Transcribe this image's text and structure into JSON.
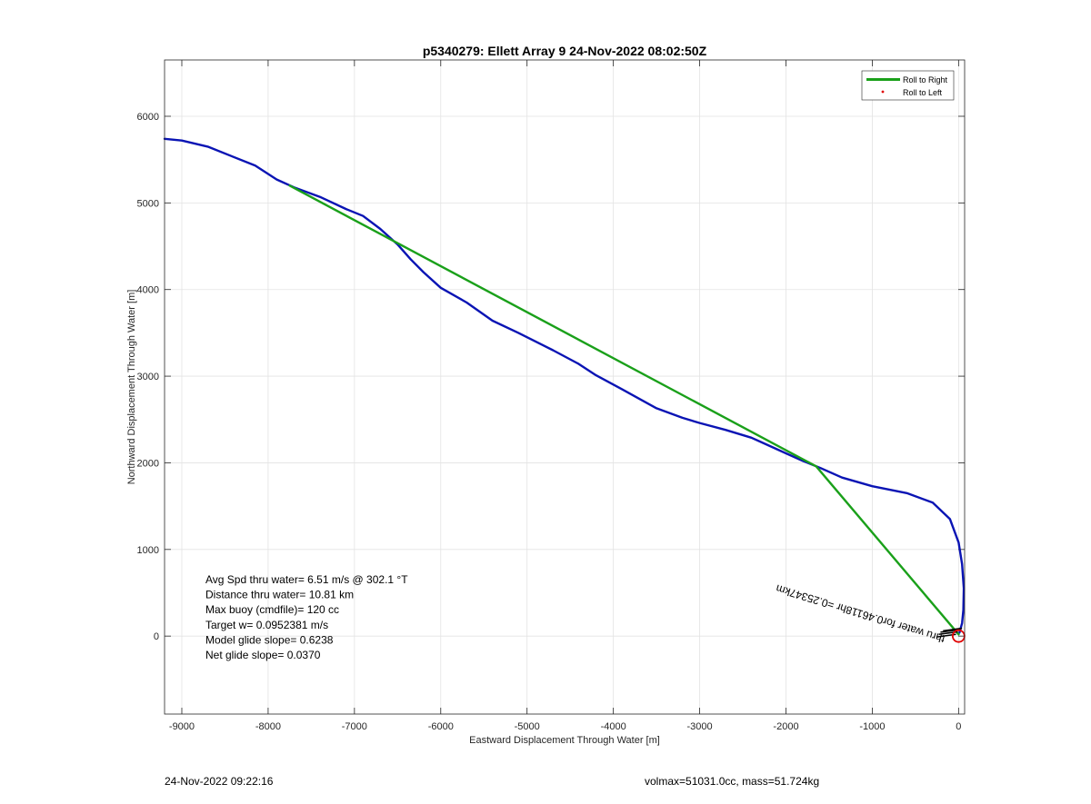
{
  "chart_data": {
    "type": "line",
    "title": "p5340279: Ellett Array 9 24-Nov-2022 08:02:50Z",
    "xlabel": "Eastward Displacement Through Water [m]",
    "ylabel": "Northward Displacement Through Water [m]",
    "xlim": [
      -9200,
      70
    ],
    "ylim": [
      -900,
      6650
    ],
    "xticks": [
      -9000,
      -8000,
      -7000,
      -6000,
      -5000,
      -4000,
      -3000,
      -2000,
      -1000,
      0
    ],
    "xtick_labels": [
      "-9000",
      "-8000",
      "-7000",
      "-6000",
      "-5000",
      "-4000",
      "-3000",
      "-2000",
      "-1000",
      "0"
    ],
    "yticks": [
      0,
      1000,
      2000,
      3000,
      4000,
      5000,
      6000
    ],
    "ytick_labels": [
      "0",
      "1000",
      "2000",
      "3000",
      "4000",
      "5000",
      "6000"
    ],
    "grid": true,
    "legend_position": "top-right",
    "legend": [
      {
        "label": "Roll to Right",
        "color": "#1aa01a",
        "marker": "line"
      },
      {
        "label": "Roll to Left",
        "color": "#e00000",
        "marker": "dot"
      }
    ],
    "series": [
      {
        "kind": "track",
        "color": "#0a14b4",
        "x": [
          -9200,
          -9000,
          -8700,
          -8150,
          -7900,
          -7700,
          -7400,
          -7100,
          -6900,
          -6700,
          -6500,
          -6350,
          -6200,
          -6000,
          -5700,
          -5400,
          -5100,
          -4700,
          -4400,
          -4200,
          -3900,
          -3700,
          -3500,
          -3200,
          -3000,
          -2700,
          -2400,
          -2200,
          -2000,
          -1800,
          -1600,
          -1350,
          -1000,
          -600,
          -300,
          -100,
          0,
          40,
          60,
          55,
          40,
          10
        ],
        "y": [
          5740,
          5720,
          5650,
          5430,
          5270,
          5180,
          5070,
          4930,
          4850,
          4700,
          4520,
          4350,
          4200,
          4020,
          3850,
          3640,
          3500,
          3300,
          3140,
          3010,
          2850,
          2740,
          2630,
          2520,
          2460,
          2380,
          2290,
          2200,
          2110,
          2020,
          1940,
          1830,
          1730,
          1650,
          1540,
          1350,
          1080,
          830,
          550,
          300,
          150,
          40
        ]
      },
      {
        "kind": "straight-track",
        "color": "#1aa01a",
        "x": [
          -7750,
          -1650,
          0
        ],
        "y": [
          5200,
          1960,
          20
        ]
      }
    ],
    "start_marker": {
      "x": 0,
      "y": 0,
      "color": "#e00000",
      "shape": "circle"
    },
    "annotation_rotated": "thru water for0.46118hr =0.25347km",
    "stats_text": [
      "Avg Spd thru water=  6.51 m/s @ 302.1 °T",
      "Distance thru water= 10.81 km",
      "Max buoy (cmdfile)= 120 cc",
      "Target w= 0.0952381 m/s",
      "Model glide slope= 0.6238",
      "Net glide slope= 0.0370"
    ]
  },
  "footer": {
    "timestamp": "24-Nov-2022 09:22:16",
    "vehicle": "volmax=51031.0cc, mass=51.724kg"
  }
}
